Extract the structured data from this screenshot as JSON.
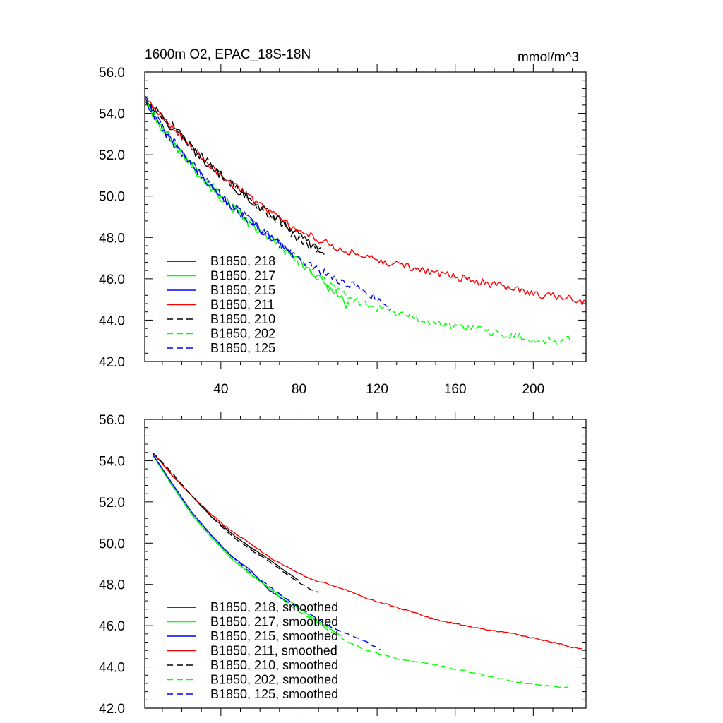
{
  "chart_data": [
    {
      "type": "line",
      "title": "1600m O2, EPAC_18S-18N",
      "units": "mmol/m^3",
      "xlim": [
        1,
        227
      ],
      "ylim": [
        42.0,
        56.0
      ],
      "xticks": [
        40,
        80,
        120,
        160,
        200
      ],
      "xtick_labels": [
        "40",
        "80",
        "120",
        "160",
        "200"
      ],
      "yticks": [
        42.0,
        44.0,
        46.0,
        48.0,
        50.0,
        52.0,
        54.0,
        56.0
      ],
      "ytick_labels": [
        "42.0",
        "44.0",
        "46.0",
        "48.0",
        "50.0",
        "52.0",
        "54.0",
        "56.0"
      ],
      "legend_position": "lower-left",
      "series": [
        {
          "name": "B1850, 218",
          "color": "#000000",
          "dash": "solid",
          "noise": 0.22,
          "points": [
            [
              1,
              54.7
            ],
            [
              10,
              53.8
            ],
            [
              20,
              52.8
            ],
            [
              30,
              51.8
            ],
            [
              40,
              51.0
            ],
            [
              50,
              50.2
            ],
            [
              60,
              49.5
            ],
            [
              70,
              48.9
            ],
            [
              80,
              48.1
            ],
            [
              90,
              47.4
            ],
            [
              93,
              47.2
            ]
          ]
        },
        {
          "name": "B1850, 217",
          "color": "#00ff00",
          "dash": "solid",
          "noise": 0.22,
          "points": [
            [
              1,
              54.6
            ],
            [
              10,
              53.2
            ],
            [
              20,
              52.0
            ],
            [
              30,
              50.9
            ],
            [
              40,
              49.9
            ],
            [
              50,
              49.0
            ],
            [
              60,
              48.3
            ],
            [
              70,
              47.6
            ],
            [
              80,
              46.9
            ],
            [
              90,
              46.0
            ],
            [
              100,
              45.2
            ],
            [
              106,
              44.6
            ]
          ]
        },
        {
          "name": "B1850, 215",
          "color": "#0000ff",
          "dash": "solid",
          "noise": 0.22,
          "points": [
            [
              1,
              54.6
            ],
            [
              10,
              53.3
            ],
            [
              20,
              52.0
            ],
            [
              30,
              51.0
            ],
            [
              40,
              50.0
            ],
            [
              50,
              49.2
            ],
            [
              60,
              48.4
            ],
            [
              70,
              47.7
            ],
            [
              78,
              47.2
            ]
          ]
        },
        {
          "name": "B1850, 211",
          "color": "#ff0000",
          "dash": "solid",
          "noise": 0.18,
          "points": [
            [
              1,
              54.7
            ],
            [
              10,
              53.8
            ],
            [
              20,
              52.9
            ],
            [
              30,
              51.9
            ],
            [
              40,
              51.0
            ],
            [
              50,
              50.3
            ],
            [
              60,
              49.6
            ],
            [
              70,
              48.9
            ],
            [
              80,
              48.3
            ],
            [
              90,
              47.9
            ],
            [
              100,
              47.5
            ],
            [
              110,
              47.2
            ],
            [
              120,
              46.9
            ],
            [
              140,
              46.5
            ],
            [
              160,
              46.1
            ],
            [
              180,
              45.7
            ],
            [
              200,
              45.3
            ],
            [
              220,
              45.0
            ],
            [
              227,
              44.8
            ]
          ]
        },
        {
          "name": "B1850, 210",
          "color": "#000000",
          "dash": "dashed",
          "noise": 0.22,
          "points": [
            [
              1,
              54.7
            ],
            [
              10,
              53.9
            ],
            [
              20,
              53.0
            ],
            [
              30,
              51.9
            ],
            [
              40,
              51.0
            ],
            [
              50,
              50.2
            ],
            [
              60,
              49.4
            ],
            [
              70,
              48.8
            ],
            [
              80,
              47.9
            ],
            [
              92,
              47.3
            ]
          ]
        },
        {
          "name": "B1850, 202",
          "color": "#00ff00",
          "dash": "dashed",
          "noise": 0.2,
          "points": [
            [
              1,
              54.7
            ],
            [
              10,
              53.3
            ],
            [
              20,
              52.1
            ],
            [
              30,
              51.0
            ],
            [
              40,
              50.1
            ],
            [
              50,
              49.1
            ],
            [
              60,
              48.3
            ],
            [
              70,
              47.6
            ],
            [
              80,
              46.7
            ],
            [
              90,
              46.1
            ],
            [
              100,
              45.4
            ],
            [
              110,
              44.9
            ],
            [
              120,
              44.6
            ],
            [
              140,
              44.1
            ],
            [
              160,
              43.7
            ],
            [
              180,
              43.4
            ],
            [
              200,
              43.1
            ],
            [
              210,
              43.0
            ],
            [
              220,
              43.1
            ]
          ]
        },
        {
          "name": "B1850, 125",
          "color": "#0000ff",
          "dash": "dashed",
          "noise": 0.22,
          "points": [
            [
              1,
              54.7
            ],
            [
              10,
              53.3
            ],
            [
              20,
              52.1
            ],
            [
              30,
              51.0
            ],
            [
              40,
              50.0
            ],
            [
              50,
              49.1
            ],
            [
              60,
              48.4
            ],
            [
              70,
              47.7
            ],
            [
              80,
              47.0
            ],
            [
              90,
              46.4
            ],
            [
              100,
              45.9
            ],
            [
              110,
              45.6
            ],
            [
              120,
              45.0
            ],
            [
              127,
              44.6
            ]
          ]
        }
      ]
    },
    {
      "type": "line",
      "xlim": [
        1,
        227
      ],
      "ylim": [
        42.0,
        56.0
      ],
      "xticks": [
        40,
        80,
        120,
        160,
        200
      ],
      "yticks": [
        42.0,
        44.0,
        46.0,
        48.0,
        50.0,
        52.0,
        54.0,
        56.0
      ],
      "ytick_labels": [
        "42.0",
        "44.0",
        "46.0",
        "48.0",
        "50.0",
        "52.0",
        "54.0",
        "56.0"
      ],
      "legend_position": "lower-left",
      "series": [
        {
          "name": "B1850, 218, smoothed",
          "color": "#000000",
          "dash": "solid",
          "noise": 0.02,
          "points": [
            [
              5,
              54.4
            ],
            [
              15,
              53.3
            ],
            [
              25,
              52.3
            ],
            [
              35,
              51.3
            ],
            [
              45,
              50.5
            ],
            [
              55,
              49.8
            ],
            [
              65,
              49.2
            ],
            [
              75,
              48.5
            ],
            [
              80,
              48.2
            ]
          ]
        },
        {
          "name": "B1850, 217, smoothed",
          "color": "#00ff00",
          "dash": "solid",
          "noise": 0.02,
          "points": [
            [
              5,
              54.3
            ],
            [
              15,
              52.8
            ],
            [
              25,
              51.4
            ],
            [
              35,
              50.3
            ],
            [
              45,
              49.3
            ],
            [
              55,
              48.5
            ],
            [
              65,
              47.8
            ],
            [
              75,
              47.2
            ],
            [
              85,
              46.5
            ],
            [
              95,
              45.9
            ],
            [
              102,
              45.5
            ]
          ]
        },
        {
          "name": "B1850, 215, smoothed",
          "color": "#0000ff",
          "dash": "solid",
          "noise": 0.02,
          "points": [
            [
              5,
              54.3
            ],
            [
              15,
              52.9
            ],
            [
              25,
              51.5
            ],
            [
              35,
              50.4
            ],
            [
              45,
              49.4
            ],
            [
              55,
              48.7
            ],
            [
              65,
              47.7
            ],
            [
              75,
              47.1
            ]
          ]
        },
        {
          "name": "B1850, 211, smoothed",
          "color": "#ff0000",
          "dash": "solid",
          "noise": 0.03,
          "points": [
            [
              5,
              54.4
            ],
            [
              15,
              53.3
            ],
            [
              25,
              52.3
            ],
            [
              35,
              51.4
            ],
            [
              45,
              50.6
            ],
            [
              55,
              50.0
            ],
            [
              65,
              49.3
            ],
            [
              75,
              48.8
            ],
            [
              85,
              48.3
            ],
            [
              95,
              48.0
            ],
            [
              105,
              47.7
            ],
            [
              115,
              47.3
            ],
            [
              130,
              46.9
            ],
            [
              150,
              46.3
            ],
            [
              170,
              45.9
            ],
            [
              190,
              45.6
            ],
            [
              210,
              45.2
            ],
            [
              222,
              44.9
            ],
            [
              225,
              44.9
            ]
          ]
        },
        {
          "name": "B1850, 210, smoothed",
          "color": "#000000",
          "dash": "dashed",
          "noise": 0.02,
          "points": [
            [
              5,
              54.4
            ],
            [
              15,
              53.4
            ],
            [
              25,
              52.3
            ],
            [
              35,
              51.3
            ],
            [
              45,
              50.4
            ],
            [
              55,
              49.7
            ],
            [
              65,
              49.1
            ],
            [
              75,
              48.4
            ],
            [
              85,
              47.8
            ],
            [
              90,
              47.6
            ]
          ]
        },
        {
          "name": "B1850, 202, smoothed",
          "color": "#00ff00",
          "dash": "dashed",
          "noise": 0.03,
          "points": [
            [
              5,
              54.3
            ],
            [
              15,
              52.8
            ],
            [
              25,
              51.4
            ],
            [
              35,
              50.3
            ],
            [
              45,
              49.3
            ],
            [
              55,
              48.5
            ],
            [
              65,
              47.8
            ],
            [
              75,
              47.0
            ],
            [
              85,
              46.4
            ],
            [
              95,
              45.8
            ],
            [
              105,
              45.2
            ],
            [
              115,
              44.8
            ],
            [
              130,
              44.4
            ],
            [
              150,
              44.1
            ],
            [
              170,
              43.7
            ],
            [
              190,
              43.3
            ],
            [
              205,
              43.1
            ],
            [
              218,
              43.0
            ]
          ]
        },
        {
          "name": "B1850, 125, smoothed",
          "color": "#0000ff",
          "dash": "dashed",
          "noise": 0.02,
          "points": [
            [
              5,
              54.3
            ],
            [
              15,
              52.9
            ],
            [
              25,
              51.5
            ],
            [
              35,
              50.4
            ],
            [
              45,
              49.4
            ],
            [
              55,
              48.6
            ],
            [
              65,
              47.9
            ],
            [
              75,
              47.2
            ],
            [
              85,
              46.6
            ],
            [
              95,
              46.0
            ],
            [
              105,
              45.6
            ],
            [
              115,
              45.2
            ],
            [
              122,
              44.8
            ]
          ]
        }
      ]
    }
  ]
}
